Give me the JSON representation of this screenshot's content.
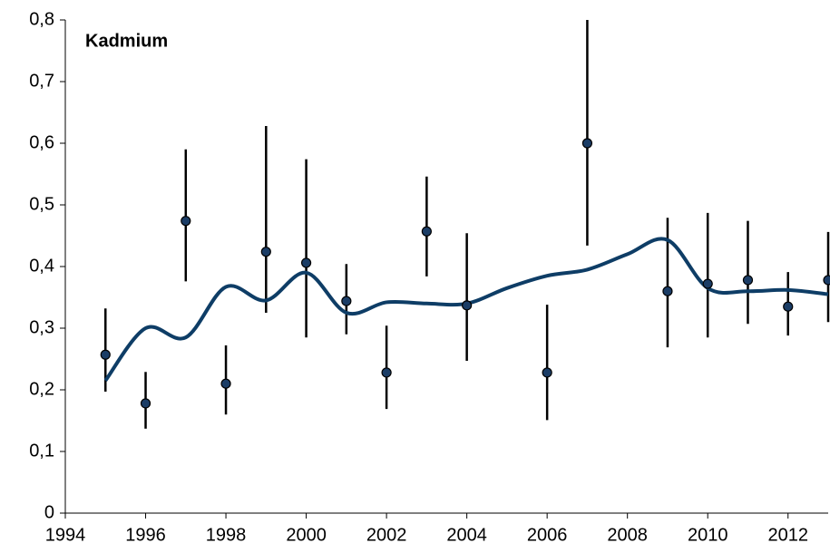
{
  "chart_data": {
    "type": "scatter",
    "title": "Kadmium",
    "x": [
      1995,
      1996,
      1997,
      1998,
      1999,
      2000,
      2001,
      2002,
      2003,
      2004,
      2006,
      2007,
      2009,
      2010,
      2011,
      2012,
      2013
    ],
    "values": [
      0.257,
      0.178,
      0.474,
      0.21,
      0.424,
      0.406,
      0.344,
      0.228,
      0.457,
      0.337,
      0.228,
      0.6,
      0.36,
      0.372,
      0.378,
      0.335,
      0.378
    ],
    "error_low": [
      0.197,
      0.137,
      0.376,
      0.16,
      0.325,
      0.285,
      0.29,
      0.169,
      0.384,
      0.247,
      0.151,
      0.434,
      0.269,
      0.285,
      0.307,
      0.288,
      0.31
    ],
    "error_high": [
      0.332,
      0.229,
      0.59,
      0.272,
      0.628,
      0.574,
      0.404,
      0.304,
      0.546,
      0.454,
      0.338,
      0.8,
      0.479,
      0.487,
      0.474,
      0.391,
      0.456
    ],
    "color": "#1b3d66",
    "trend": {
      "x": [
        1995,
        1996,
        1997,
        1998,
        1999,
        2000,
        2001,
        2002,
        2003,
        2004,
        2005,
        2006,
        2007,
        2008,
        2009,
        2010,
        2011,
        2012,
        2013
      ],
      "values": [
        0.215,
        0.3,
        0.285,
        0.367,
        0.345,
        0.39,
        0.325,
        0.342,
        0.34,
        0.34,
        0.365,
        0.385,
        0.395,
        0.42,
        0.443,
        0.365,
        0.36,
        0.362,
        0.355
      ],
      "color": "#0e3d66"
    },
    "xlim": [
      1994,
      2013
    ],
    "xticks": [
      1994,
      1996,
      1998,
      2000,
      2002,
      2004,
      2006,
      2008,
      2010,
      2012
    ],
    "ylim": [
      0,
      0.8
    ],
    "yticks": [
      0,
      {
        "value": 0.1,
        "label": "0,1"
      },
      {
        "value": 0.2,
        "label": "0,2"
      },
      {
        "value": 0.3,
        "label": "0,3"
      },
      {
        "value": 0.4,
        "label": "0,4"
      },
      {
        "value": 0.5,
        "label": "0,5"
      },
      {
        "value": 0.6,
        "label": "0,6"
      },
      {
        "value": 0.7,
        "label": "0,7"
      },
      {
        "value": 0.8,
        "label": "0,8"
      }
    ],
    "grid": false
  }
}
